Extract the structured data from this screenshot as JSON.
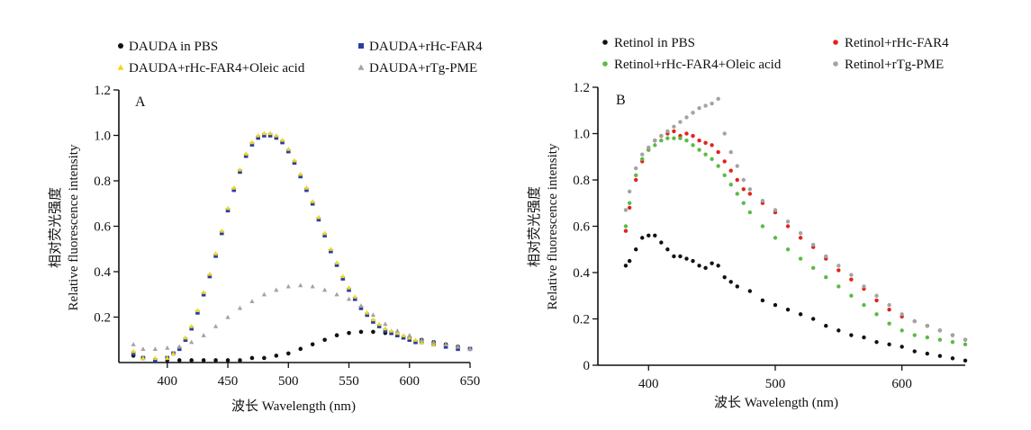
{
  "figure": {
    "panels": [
      {
        "letter": "A",
        "legend": [
          {
            "label": "DAUDA in PBS",
            "marker": "circle",
            "color": "#111111"
          },
          {
            "label": "DAUDA+rHc-FAR4",
            "marker": "square",
            "color": "#2b3f9e"
          },
          {
            "label": "DAUDA+rHc-FAR4+Oleic acid",
            "marker": "triangle",
            "color": "#f2d51c"
          },
          {
            "label": "DAUDA+rTg-PME",
            "marker": "triangle",
            "color": "#a3a3a3"
          }
        ],
        "ylabel_cn": "相对荧光强度",
        "ylabel_en": "Relative fluorescence intensity",
        "xlabel": "波长 Wavelength (nm)"
      },
      {
        "letter": "B",
        "legend": [
          {
            "label": "Retinol in PBS",
            "marker": "circle",
            "color": "#111111"
          },
          {
            "label": "Retinol+rHc-FAR4",
            "marker": "circle",
            "color": "#e2231a"
          },
          {
            "label": "Retinol+rHc-FAR4+Oleic acid",
            "marker": "circle",
            "color": "#5cba47"
          },
          {
            "label": "Retinol+rTg-PME",
            "marker": "circle",
            "color": "#a3a3a3"
          }
        ],
        "ylabel_cn": "相对荧光强度",
        "ylabel_en": "Relative fluorescence intensity",
        "xlabel": "波长 Wavelength (nm)"
      }
    ]
  },
  "chart_data": [
    {
      "type": "scatter",
      "panel": "A",
      "xlabel": "波长 Wavelength (nm)",
      "ylabel": "相对荧光强度 Relative fluorescence intensity",
      "xlim": [
        360,
        650
      ],
      "ylim": [
        0,
        1.2
      ],
      "xticks": [
        400,
        450,
        500,
        550,
        600,
        650
      ],
      "yticks": [
        0.2,
        0.4,
        0.6,
        0.8,
        1.0,
        1.2
      ],
      "ytick_labels": [
        "0.2",
        "0.4",
        "0.6",
        "0.8",
        "1.0",
        "1.2"
      ],
      "grid": false,
      "legend_position": "top",
      "series": [
        {
          "name": "DAUDA in PBS",
          "x": [
            372,
            380,
            390,
            400,
            410,
            420,
            430,
            440,
            450,
            460,
            470,
            480,
            490,
            500,
            510,
            520,
            530,
            540,
            550,
            560,
            570,
            580,
            590,
            600,
            610,
            620,
            630,
            640,
            650
          ],
          "y": [
            0.03,
            0.02,
            0.01,
            0.01,
            0.01,
            0.01,
            0.01,
            0.01,
            0.01,
            0.01,
            0.02,
            0.02,
            0.03,
            0.04,
            0.06,
            0.08,
            0.1,
            0.12,
            0.13,
            0.135,
            0.135,
            0.13,
            0.12,
            0.11,
            0.1,
            0.09,
            0.08,
            0.07,
            0.06
          ]
        },
        {
          "name": "DAUDA+rHc-FAR4",
          "x": [
            372,
            380,
            390,
            400,
            405,
            410,
            415,
            420,
            425,
            430,
            435,
            440,
            445,
            450,
            455,
            460,
            465,
            470,
            475,
            480,
            485,
            490,
            495,
            500,
            505,
            510,
            515,
            520,
            525,
            530,
            535,
            540,
            545,
            550,
            555,
            560,
            565,
            570,
            575,
            580,
            585,
            590,
            595,
            600,
            605,
            610,
            620,
            630,
            640,
            650
          ],
          "y": [
            0.04,
            0.02,
            0.01,
            0.02,
            0.04,
            0.06,
            0.1,
            0.15,
            0.22,
            0.3,
            0.38,
            0.47,
            0.57,
            0.67,
            0.76,
            0.84,
            0.91,
            0.96,
            0.99,
            1.0,
            1.0,
            0.99,
            0.97,
            0.93,
            0.88,
            0.82,
            0.76,
            0.7,
            0.63,
            0.56,
            0.49,
            0.43,
            0.37,
            0.32,
            0.28,
            0.24,
            0.21,
            0.18,
            0.16,
            0.14,
            0.13,
            0.12,
            0.11,
            0.1,
            0.09,
            0.09,
            0.08,
            0.07,
            0.06,
            0.06
          ]
        },
        {
          "name": "DAUDA+rHc-FAR4+Oleic acid",
          "x": [
            372,
            380,
            390,
            400,
            405,
            410,
            415,
            420,
            425,
            430,
            435,
            440,
            445,
            450,
            455,
            460,
            465,
            470,
            475,
            480,
            485,
            490,
            495,
            500,
            505,
            510,
            515,
            520,
            525,
            530,
            535,
            540,
            545,
            550,
            555,
            560,
            565,
            570,
            575,
            580,
            585,
            590,
            595,
            600,
            605,
            610,
            620,
            630,
            640,
            650
          ],
          "y": [
            0.05,
            0.02,
            0.02,
            0.02,
            0.04,
            0.07,
            0.11,
            0.16,
            0.23,
            0.31,
            0.39,
            0.48,
            0.58,
            0.68,
            0.77,
            0.85,
            0.92,
            0.97,
            1.0,
            1.01,
            1.01,
            1.0,
            0.98,
            0.94,
            0.89,
            0.83,
            0.77,
            0.71,
            0.64,
            0.57,
            0.5,
            0.44,
            0.38,
            0.33,
            0.29,
            0.25,
            0.22,
            0.19,
            0.17,
            0.15,
            0.14,
            0.13,
            0.12,
            0.11,
            0.1,
            0.09,
            0.08,
            0.08,
            0.07,
            0.06
          ]
        },
        {
          "name": "DAUDA+rTg-PME",
          "x": [
            372,
            380,
            390,
            400,
            410,
            420,
            430,
            440,
            450,
            460,
            470,
            480,
            490,
            500,
            510,
            520,
            530,
            540,
            550,
            560,
            570,
            580,
            590,
            600,
            610,
            620,
            630,
            640,
            650
          ],
          "y": [
            0.08,
            0.06,
            0.06,
            0.065,
            0.07,
            0.09,
            0.12,
            0.16,
            0.2,
            0.24,
            0.27,
            0.3,
            0.32,
            0.335,
            0.34,
            0.335,
            0.32,
            0.3,
            0.28,
            0.25,
            0.21,
            0.17,
            0.14,
            0.12,
            0.1,
            0.09,
            0.08,
            0.07,
            0.06
          ]
        }
      ]
    },
    {
      "type": "scatter",
      "panel": "B",
      "xlabel": "波长 Wavelength (nm)",
      "ylabel": "相对荧光强度 Relative fluorescence intensity",
      "xlim": [
        360,
        650
      ],
      "ylim": [
        0,
        1.2
      ],
      "xticks": [
        400,
        500,
        600
      ],
      "yticks": [
        0,
        0.2,
        0.4,
        0.6,
        0.8,
        1.0,
        1.2
      ],
      "ytick_labels": [
        "0",
        "0.2",
        "0.4",
        "0.6",
        "0.8",
        "1.0",
        "1.2"
      ],
      "grid": false,
      "legend_position": "top",
      "series": [
        {
          "name": "Retinol in PBS",
          "x": [
            382,
            385,
            390,
            395,
            400,
            405,
            410,
            415,
            420,
            425,
            430,
            435,
            440,
            445,
            450,
            455,
            460,
            465,
            470,
            480,
            490,
            500,
            510,
            520,
            530,
            540,
            550,
            560,
            570,
            580,
            590,
            600,
            610,
            620,
            630,
            640,
            650
          ],
          "y": [
            0.43,
            0.45,
            0.5,
            0.55,
            0.56,
            0.56,
            0.53,
            0.5,
            0.47,
            0.47,
            0.46,
            0.45,
            0.43,
            0.42,
            0.44,
            0.43,
            0.38,
            0.36,
            0.34,
            0.32,
            0.28,
            0.26,
            0.24,
            0.22,
            0.2,
            0.17,
            0.15,
            0.13,
            0.12,
            0.1,
            0.09,
            0.08,
            0.06,
            0.05,
            0.04,
            0.03,
            0.02
          ]
        },
        {
          "name": "Retinol+rHc-FAR4",
          "x": [
            382,
            385,
            390,
            395,
            400,
            405,
            410,
            415,
            420,
            425,
            430,
            435,
            440,
            445,
            450,
            455,
            460,
            465,
            470,
            475,
            480,
            490,
            500,
            510,
            520,
            530,
            540,
            550,
            560,
            570,
            580,
            590,
            600,
            610,
            620,
            630,
            640,
            650
          ],
          "y": [
            0.58,
            0.68,
            0.8,
            0.88,
            0.93,
            0.97,
            0.99,
            1.0,
            1.01,
            0.99,
            1.0,
            0.99,
            0.97,
            0.96,
            0.95,
            0.92,
            0.88,
            0.84,
            0.8,
            0.76,
            0.74,
            0.7,
            0.66,
            0.6,
            0.55,
            0.51,
            0.46,
            0.41,
            0.37,
            0.33,
            0.28,
            0.24,
            0.21,
            0.19,
            0.17,
            0.15,
            0.13,
            0.11
          ]
        },
        {
          "name": "Retinol+rHc-FAR4+Oleic acid",
          "x": [
            382,
            385,
            390,
            395,
            400,
            405,
            410,
            415,
            420,
            425,
            430,
            435,
            440,
            445,
            450,
            455,
            460,
            465,
            470,
            475,
            480,
            490,
            500,
            510,
            520,
            530,
            540,
            550,
            560,
            570,
            580,
            590,
            600,
            610,
            620,
            630,
            640,
            650
          ],
          "y": [
            0.6,
            0.7,
            0.82,
            0.89,
            0.93,
            0.95,
            0.97,
            0.98,
            0.98,
            0.98,
            0.97,
            0.95,
            0.93,
            0.91,
            0.89,
            0.86,
            0.82,
            0.78,
            0.74,
            0.7,
            0.66,
            0.6,
            0.55,
            0.5,
            0.46,
            0.42,
            0.38,
            0.34,
            0.3,
            0.26,
            0.22,
            0.18,
            0.15,
            0.13,
            0.12,
            0.11,
            0.1,
            0.09
          ]
        },
        {
          "name": "Retinol+rTg-PME",
          "x": [
            382,
            385,
            390,
            395,
            400,
            405,
            410,
            415,
            420,
            425,
            430,
            435,
            440,
            445,
            450,
            455,
            460,
            465,
            470,
            475,
            480,
            490,
            500,
            510,
            520,
            530,
            540,
            550,
            560,
            570,
            580,
            590,
            600,
            610,
            620,
            630,
            640,
            650
          ],
          "y": [
            0.67,
            0.75,
            0.85,
            0.91,
            0.94,
            0.97,
            0.99,
            1.01,
            1.03,
            1.05,
            1.07,
            1.09,
            1.11,
            1.12,
            1.13,
            1.15,
            1.0,
            0.92,
            0.86,
            0.8,
            0.76,
            0.71,
            0.67,
            0.62,
            0.57,
            0.52,
            0.47,
            0.43,
            0.39,
            0.34,
            0.3,
            0.26,
            0.22,
            0.19,
            0.17,
            0.15,
            0.13,
            0.11
          ]
        }
      ]
    }
  ]
}
